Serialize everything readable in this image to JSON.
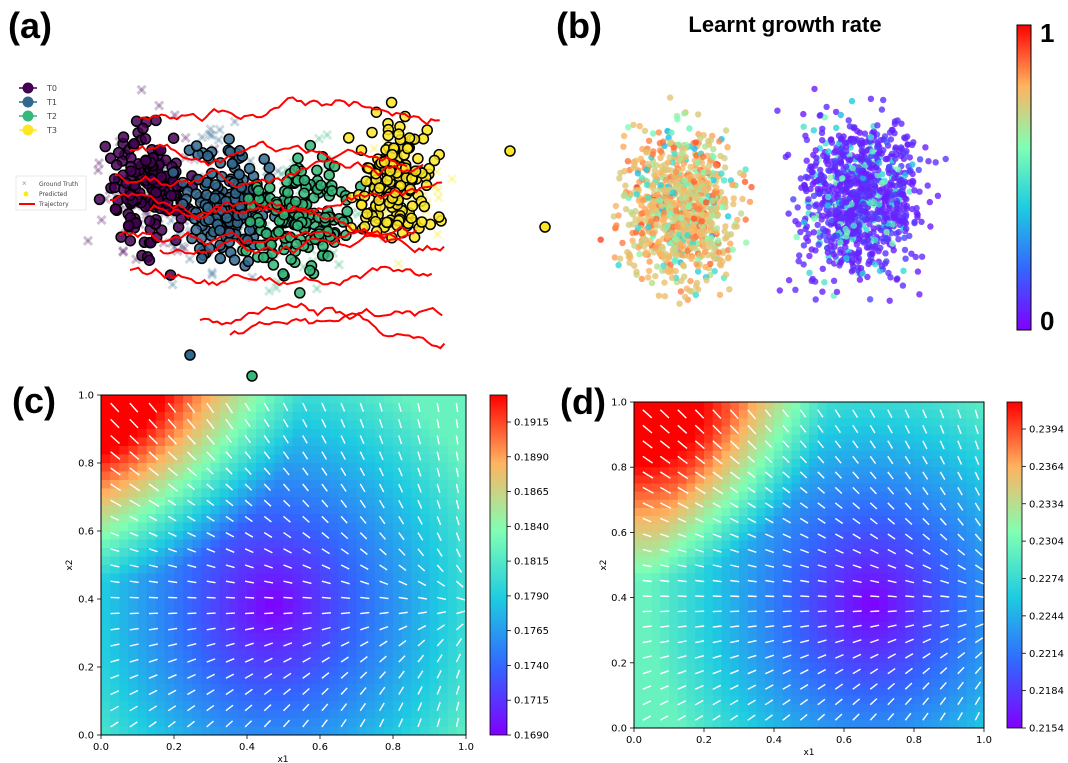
{
  "panel_labels": [
    "(a)",
    "(b)",
    "(c)",
    "(d)"
  ],
  "chart_data": [
    {
      "panel": "(a)",
      "type": "scatter",
      "title": "",
      "legend": {
        "placement": "top-left",
        "timepoints": [
          {
            "label": "T0",
            "color": "#440154"
          },
          {
            "label": "T1",
            "color": "#31688e"
          },
          {
            "label": "T2",
            "color": "#35b779"
          },
          {
            "label": "T3",
            "color": "#fde725"
          }
        ],
        "markers": [
          {
            "label": "Ground Truth",
            "symbol": "x"
          },
          {
            "label": "Predicted",
            "symbol": "circle"
          },
          {
            "label": "Trajectory",
            "symbol": "line",
            "color": "#ff0000"
          }
        ]
      },
      "series": [
        {
          "name": "T0",
          "color": "#440154"
        },
        {
          "name": "T1",
          "color": "#31688e"
        },
        {
          "name": "T2",
          "color": "#35b779"
        },
        {
          "name": "T3",
          "color": "#fde725"
        }
      ],
      "trajectory_color": "#ff0000"
    },
    {
      "panel": "(b)",
      "type": "scatter",
      "title": "Learnt growth rate",
      "colorbar": {
        "min_label": "1",
        "max_label": "0",
        "top_value": 1,
        "bottom_value": 0,
        "colormap": "rainbow"
      },
      "trend": "growth rate high (≈0.8–1) on the left cluster, low (≈0–0.1) on the right cluster"
    },
    {
      "panel": "(c)",
      "type": "heatmap",
      "xlabel": "x1",
      "ylabel": "x2",
      "xlim": [
        0.0,
        1.0
      ],
      "ylim": [
        0.0,
        1.0
      ],
      "xticks": [
        "0.0",
        "0.2",
        "0.4",
        "0.6",
        "0.8",
        "1.0"
      ],
      "yticks": [
        "0.0",
        "0.2",
        "0.4",
        "0.6",
        "0.8",
        "1.0"
      ],
      "colorbar_ticks": [
        "0.1915",
        "0.1890",
        "0.1865",
        "0.1840",
        "0.1815",
        "0.1790",
        "0.1765",
        "0.1740",
        "0.1715",
        "0.1690"
      ],
      "value_range": [
        0.169,
        0.194
      ],
      "maximum_at": [
        0.0,
        1.0
      ],
      "minimum_at": [
        0.47,
        0.38
      ],
      "overlay": "quiver (white arrows)"
    },
    {
      "panel": "(d)",
      "type": "heatmap",
      "xlabel": "x1",
      "ylabel": "x2",
      "xlim": [
        0.0,
        1.0
      ],
      "ylim": [
        0.0,
        1.0
      ],
      "xticks": [
        "0.0",
        "0.2",
        "0.4",
        "0.6",
        "0.8",
        "1.0"
      ],
      "yticks": [
        "0.0",
        "0.2",
        "0.4",
        "0.6",
        "0.8",
        "1.0"
      ],
      "colorbar_ticks": [
        "0.2394",
        "0.2364",
        "0.2334",
        "0.2304",
        "0.2274",
        "0.2244",
        "0.2214",
        "0.2184",
        "0.2154"
      ],
      "value_range": [
        0.2154,
        0.2424
      ],
      "maximum_at": [
        0.0,
        1.0
      ],
      "minimum_at": [
        0.68,
        0.38
      ],
      "overlay": "quiver (white arrows)"
    }
  ]
}
